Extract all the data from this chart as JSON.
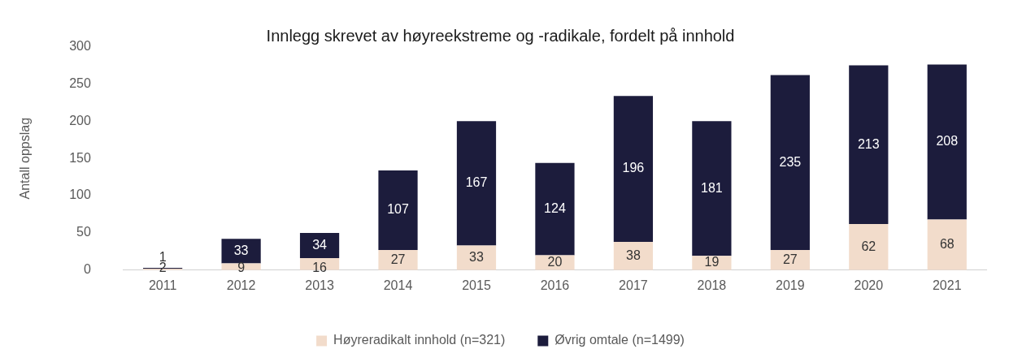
{
  "chart_data": {
    "type": "bar",
    "title": "Innlegg skrevet av høyreekstreme og -radikale, fordelt på innhold",
    "ylabel": "Antall oppslag",
    "categories": [
      "2011",
      "2012",
      "2013",
      "2014",
      "2015",
      "2016",
      "2017",
      "2018",
      "2019",
      "2020",
      "2021"
    ],
    "series": [
      {
        "name": "Høyreradikalt innhold (n=321)",
        "color": "#f2dccb",
        "values": [
          2,
          9,
          16,
          27,
          33,
          20,
          38,
          19,
          27,
          62,
          68
        ]
      },
      {
        "name": "Øvrig omtale (n=1499)",
        "color": "#1c1c3c",
        "values": [
          1,
          33,
          34,
          107,
          167,
          124,
          196,
          181,
          235,
          213,
          208
        ]
      }
    ],
    "stacked": true,
    "ylim": [
      0,
      300
    ],
    "yticks": [
      0,
      50,
      100,
      150,
      200,
      250,
      300
    ],
    "grid": false,
    "legend": "bottom",
    "data_labels": true
  }
}
